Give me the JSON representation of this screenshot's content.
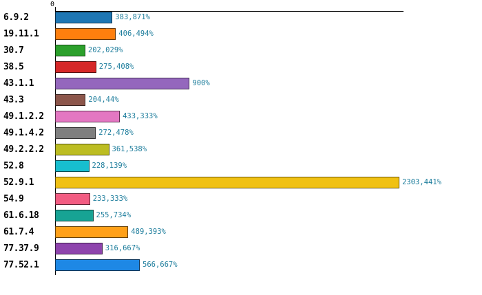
{
  "chart_data": {
    "type": "bar",
    "orientation": "horizontal",
    "title": "",
    "xlabel": "",
    "ylabel": "",
    "x_axis": {
      "position": "top",
      "tick_labels": [
        "0"
      ],
      "xlim": [
        0,
        2326
      ]
    },
    "grid": false,
    "legend": false,
    "categories": [
      "6.9.2",
      "19.11.1",
      "30.7",
      "38.5",
      "43.1.1",
      "43.3",
      "49.1.2.2",
      "49.1.4.2",
      "49.2.2.2",
      "52.8",
      "52.9.1",
      "54.9",
      "61.6.18",
      "61.7.4",
      "77.37.9",
      "77.52.1"
    ],
    "values": [
      383.871,
      406.494,
      202.029,
      275.408,
      900,
      204.44,
      433.333,
      272.478,
      361.538,
      228.139,
      2303.441,
      233.333,
      255.734,
      489.393,
      316.667,
      566.667
    ],
    "value_labels": [
      "383,871%",
      "406,494%",
      "202,029%",
      "275,408%",
      "900%",
      "204,44%",
      "433,333%",
      "272,478%",
      "361,538%",
      "228,139%",
      "2303,441%",
      "233,333%",
      "255,734%",
      "489,393%",
      "316,667%",
      "566,667%"
    ],
    "bar_colors": [
      "#1f77b4",
      "#ff7f0e",
      "#2ca02c",
      "#d62728",
      "#9467bd",
      "#8c564b",
      "#e377c2",
      "#7f7f7f",
      "#bcbd22",
      "#17becf",
      "#f0c113",
      "#f25c82",
      "#17a394",
      "#ffa018",
      "#8e44ad",
      "#1e88e5"
    ],
    "value_label_color": "#1d7d9c",
    "axis_color": "#000000"
  }
}
